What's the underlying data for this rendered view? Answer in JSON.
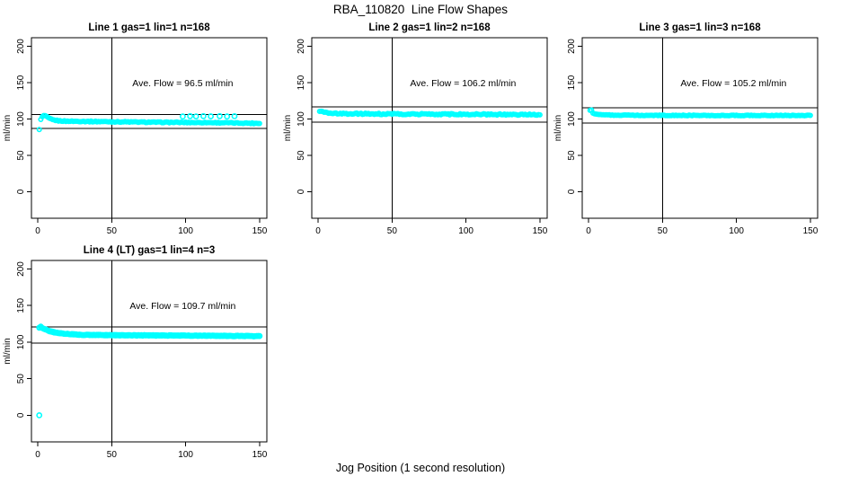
{
  "figure": {
    "title": "RBA_110820  Line Flow Shapes",
    "xlabel": "Jog Position (1 second resolution)",
    "background": "#ffffff",
    "axis_color": "#000000",
    "point_color": "#00ffff",
    "point_style": "open-circle"
  },
  "chart_data": [
    {
      "type": "scatter",
      "id": "line-1",
      "title": "Line 1 gas=1 lin=1 n=168",
      "annotation": "Ave. Flow =  96.5  ml/min",
      "ave_flow": 96.5,
      "n": 168,
      "ylabel": "ml/min",
      "xticks": [
        0,
        50,
        100,
        150
      ],
      "yticks": [
        0,
        50,
        100,
        150,
        200
      ],
      "xlim": [
        -4.3,
        154.9
      ],
      "ylim": [
        -36.4,
        211.7
      ],
      "vline_x": 50,
      "hline_upper": 106.2,
      "hline_lower": 86.9,
      "profile": [
        [
          1,
          86
        ],
        [
          2,
          99
        ],
        [
          3,
          103
        ],
        [
          4,
          104.5
        ],
        [
          5,
          104.5
        ],
        [
          6,
          103
        ],
        [
          8,
          100.5
        ],
        [
          10,
          99
        ],
        [
          14,
          97.5
        ],
        [
          20,
          97
        ],
        [
          40,
          96.5
        ],
        [
          80,
          95.5
        ],
        [
          120,
          95
        ],
        [
          150,
          94
        ]
      ],
      "extra_points": [
        [
          98,
          103.5
        ],
        [
          103,
          104
        ],
        [
          107,
          103.6
        ],
        [
          112,
          104
        ],
        [
          117,
          103.7
        ],
        [
          123,
          104
        ],
        [
          128,
          103.5
        ],
        [
          133,
          103.8
        ]
      ],
      "noise": 1.2,
      "passes": 1
    },
    {
      "type": "scatter",
      "id": "line-2",
      "title": "Line 2 gas=1 lin=2 n=168",
      "annotation": "Ave. Flow =  106.2  ml/min",
      "ave_flow": 106.2,
      "n": 168,
      "ylabel": "ml/min",
      "xticks": [
        0,
        50,
        100,
        150
      ],
      "yticks": [
        0,
        50,
        100,
        150,
        200
      ],
      "xlim": [
        -4.3,
        154.9
      ],
      "ylim": [
        -36.4,
        211.7
      ],
      "vline_x": 50,
      "hline_upper": 116.8,
      "hline_lower": 95.6,
      "profile": [
        [
          1,
          110
        ],
        [
          2,
          110.5
        ],
        [
          4,
          109
        ],
        [
          8,
          108
        ],
        [
          15,
          107.5
        ],
        [
          40,
          107
        ],
        [
          100,
          106.5
        ],
        [
          150,
          106
        ]
      ],
      "extra_points": [],
      "noise": 1.8,
      "passes": 1
    },
    {
      "type": "scatter",
      "id": "line-3",
      "title": "Line 3 gas=1 lin=3 n=168",
      "annotation": "Ave. Flow =  105.2  ml/min",
      "ave_flow": 105.2,
      "n": 168,
      "ylabel": "ml/min",
      "xticks": [
        0,
        50,
        100,
        150
      ],
      "yticks": [
        0,
        50,
        100,
        150,
        200
      ],
      "xlim": [
        -4.3,
        154.9
      ],
      "ylim": [
        -36.4,
        211.7
      ],
      "vline_x": 50,
      "hline_upper": 115.7,
      "hline_lower": 94.7,
      "profile": [
        [
          1,
          112
        ],
        [
          2,
          112
        ],
        [
          3,
          108
        ],
        [
          5,
          106.5
        ],
        [
          10,
          105.5
        ],
        [
          30,
          105
        ],
        [
          150,
          104.8
        ]
      ],
      "extra_points": [],
      "noise": 1.0,
      "passes": 1
    },
    {
      "type": "scatter",
      "id": "line-4",
      "title": "Line 4 (LT) gas=1 lin=4 n=3",
      "annotation": "Ave. Flow =  109.7  ml/min",
      "ave_flow": 109.7,
      "n": 3,
      "ylabel": "ml/min",
      "xticks": [
        0,
        50,
        100,
        150
      ],
      "yticks": [
        0,
        50,
        100,
        150,
        200
      ],
      "xlim": [
        -4.3,
        154.9
      ],
      "ylim": [
        -36.4,
        211.7
      ],
      "vline_x": 50,
      "hline_upper": 120.7,
      "hline_lower": 98.7,
      "profile": [
        [
          1,
          120
        ],
        [
          2,
          121
        ],
        [
          3,
          119.5
        ],
        [
          5,
          117.5
        ],
        [
          8,
          115
        ],
        [
          12,
          113
        ],
        [
          18,
          111.5
        ],
        [
          30,
          110
        ],
        [
          60,
          109.3
        ],
        [
          100,
          109
        ],
        [
          150,
          108.2
        ]
      ],
      "extra_points": [
        [
          1,
          0
        ]
      ],
      "noise": 0.9,
      "passes": 2
    }
  ]
}
